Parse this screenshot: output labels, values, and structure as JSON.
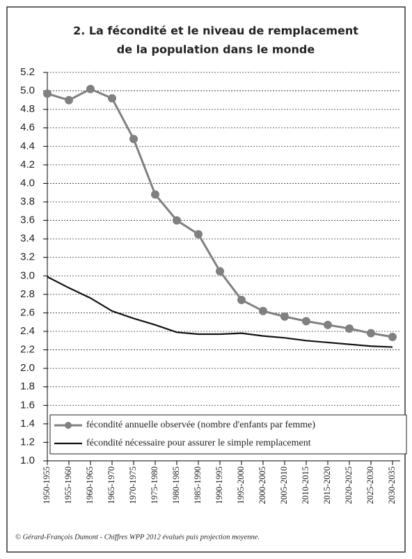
{
  "chart_data": {
    "type": "line",
    "title": "2. La fécondité et le niveau de remplacement",
    "subtitle": "de la population dans le monde",
    "categories": [
      "1950-1955",
      "1955-1960",
      "1960-1965",
      "1965-1970",
      "1970-1975",
      "1975-1980",
      "1980-1985",
      "1985-1990",
      "1990-1995",
      "1995-2000",
      "2000-2005",
      "2005-2010",
      "2010-2015",
      "2015-2020",
      "2020-2025",
      "2025-2030",
      "2030-2035"
    ],
    "series": [
      {
        "name": "fécondité annuelle observée (nombre d'enfants par femme)",
        "color": "#808080",
        "markers": true,
        "values": [
          4.97,
          4.9,
          5.02,
          4.92,
          4.48,
          3.88,
          3.6,
          3.45,
          3.05,
          2.74,
          2.62,
          2.56,
          2.51,
          2.47,
          2.43,
          2.38,
          2.34
        ]
      },
      {
        "name": "fécondité nécessaire pour assurer le simple remplacement",
        "color": "#111111",
        "markers": false,
        "values": [
          2.99,
          2.87,
          2.76,
          2.62,
          2.54,
          2.47,
          2.39,
          2.37,
          2.37,
          2.38,
          2.35,
          2.33,
          2.3,
          2.28,
          2.26,
          2.24,
          2.23
        ]
      }
    ],
    "ylim": [
      1.0,
      5.2
    ],
    "yticks": [
      {
        "value": 1,
        "label": "1.0"
      },
      1.2,
      1.4,
      1.6,
      1.8,
      {
        "value": 2,
        "label": "2.0"
      },
      2.2,
      2.4,
      2.6,
      2.8,
      {
        "value": 3,
        "label": "3.0"
      },
      3.2,
      3.4,
      3.6,
      3.8,
      {
        "value": 4,
        "label": "4.0"
      },
      4.2,
      4.4,
      4.6,
      4.8,
      {
        "value": 5,
        "label": "5.0"
      },
      5.2
    ],
    "grid": true,
    "legend": "lower right",
    "source": "© Gérard-François Dumont - Chiffres WPP 2012 évalués puis projection moyenne."
  }
}
